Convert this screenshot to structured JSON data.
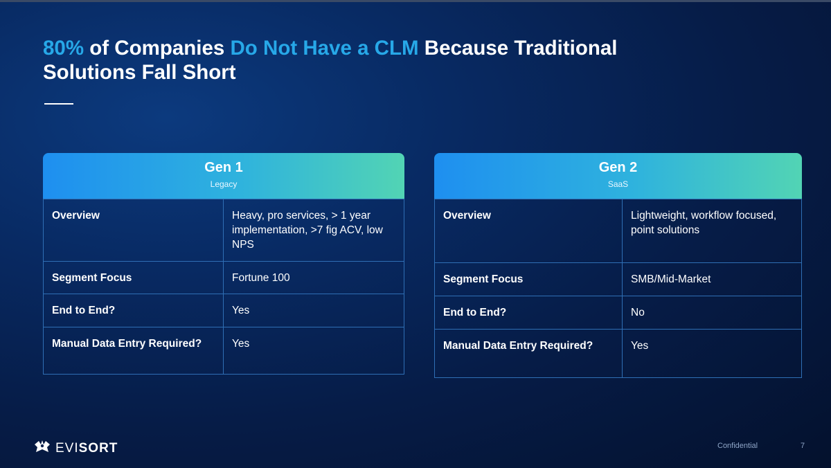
{
  "slide": {
    "title": {
      "part1_accent": "80%",
      "part2": " of Companies ",
      "part3_accent": "Do Not Have a CLM",
      "part4": " Because Traditional",
      "line2": "Solutions Fall Short"
    },
    "accent_color": "#27a8e8"
  },
  "cards": [
    {
      "title": "Gen 1",
      "subtitle": "Legacy",
      "rows": [
        {
          "label": "Overview",
          "value": "Heavy, pro services, > 1 year implementation, >7 fig ACV, low NPS"
        },
        {
          "label": "Segment Focus",
          "value": "Fortune 100"
        },
        {
          "label": "End to End?",
          "value": "Yes"
        },
        {
          "label": "Manual Data Entry Required?",
          "value": "Yes"
        }
      ]
    },
    {
      "title": "Gen 2",
      "subtitle": "SaaS",
      "rows": [
        {
          "label": "Overview",
          "value": "Lightweight, workflow focused, point solutions"
        },
        {
          "label": "Segment Focus",
          "value": "SMB/Mid-Market"
        },
        {
          "label": "End to End?",
          "value": "No"
        },
        {
          "label": "Manual Data Entry Required?",
          "value": "Yes"
        }
      ]
    }
  ],
  "footer": {
    "logo_text_light": "EVI",
    "logo_text_bold": "SORT",
    "confidential": "Confidential",
    "page_number": "7",
    "logo_icon": "evisort-logo-icon"
  }
}
